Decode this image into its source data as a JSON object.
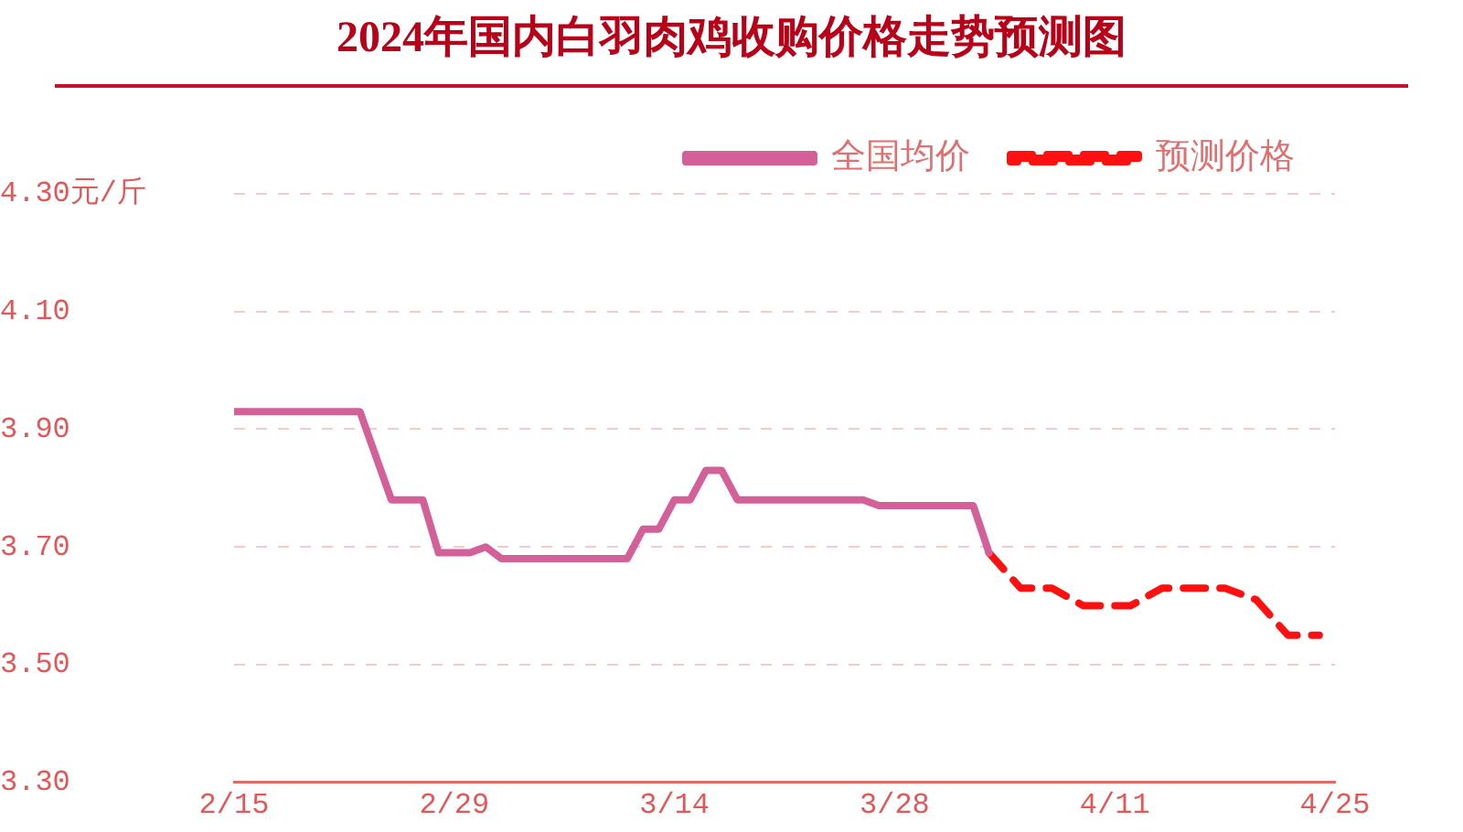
{
  "chart_data": {
    "type": "line",
    "title": "2024年国内白羽肉鸡收购价格走势预测图",
    "series": [
      {
        "name": "全国均价",
        "color": "#d4609a",
        "line_style": "solid",
        "x": [
          "--02-15",
          "--02-23",
          "--02-25",
          "--02-27",
          "--02-28",
          "--03-01",
          "--03-02",
          "--03-03",
          "--03-11",
          "--03-12",
          "--03-13",
          "--03-14",
          "--03-15",
          "--03-16",
          "--03-17",
          "--03-18",
          "--03-26",
          "--03-27",
          "--04-02",
          "--04-03"
        ],
        "values": [
          3.93,
          3.93,
          3.78,
          3.78,
          3.69,
          3.69,
          3.7,
          3.68,
          3.68,
          3.73,
          3.73,
          3.78,
          3.78,
          3.83,
          3.83,
          3.78,
          3.78,
          3.77,
          3.77,
          3.69
        ]
      },
      {
        "name": "预测价格",
        "color": "#ff1010",
        "line_style": "dashed",
        "x": [
          "--04-03",
          "--04-05",
          "--04-07",
          "--04-09",
          "--04-12",
          "--04-14",
          "--04-18",
          "--04-20",
          "--04-22",
          "--04-24"
        ],
        "values": [
          3.69,
          3.63,
          3.63,
          3.6,
          3.6,
          3.63,
          3.63,
          3.61,
          3.55,
          3.55
        ]
      }
    ],
    "xlim": [
      "--02-15",
      "--04-25"
    ],
    "xticks": [
      {
        "value": "--02-15",
        "label": "2/15"
      },
      {
        "value": "--02-29",
        "label": "2/29"
      },
      {
        "value": "--03-14",
        "label": "3/14"
      },
      {
        "value": "--03-28",
        "label": "3/28"
      },
      {
        "value": "--04-11",
        "label": "4/11"
      },
      {
        "value": "--04-25",
        "label": "4/25"
      }
    ],
    "ylim": [
      3.3,
      4.3
    ],
    "yticks": [
      {
        "value": 3.3,
        "label": "3.30"
      },
      {
        "value": 3.5,
        "label": "3.50"
      },
      {
        "value": 3.7,
        "label": "3.70"
      },
      {
        "value": 3.9,
        "label": "3.90"
      },
      {
        "value": 4.1,
        "label": "4.10"
      },
      {
        "value": 4.3,
        "label": "4.30元/斤"
      }
    ],
    "grid": "y",
    "legend": "top right"
  }
}
